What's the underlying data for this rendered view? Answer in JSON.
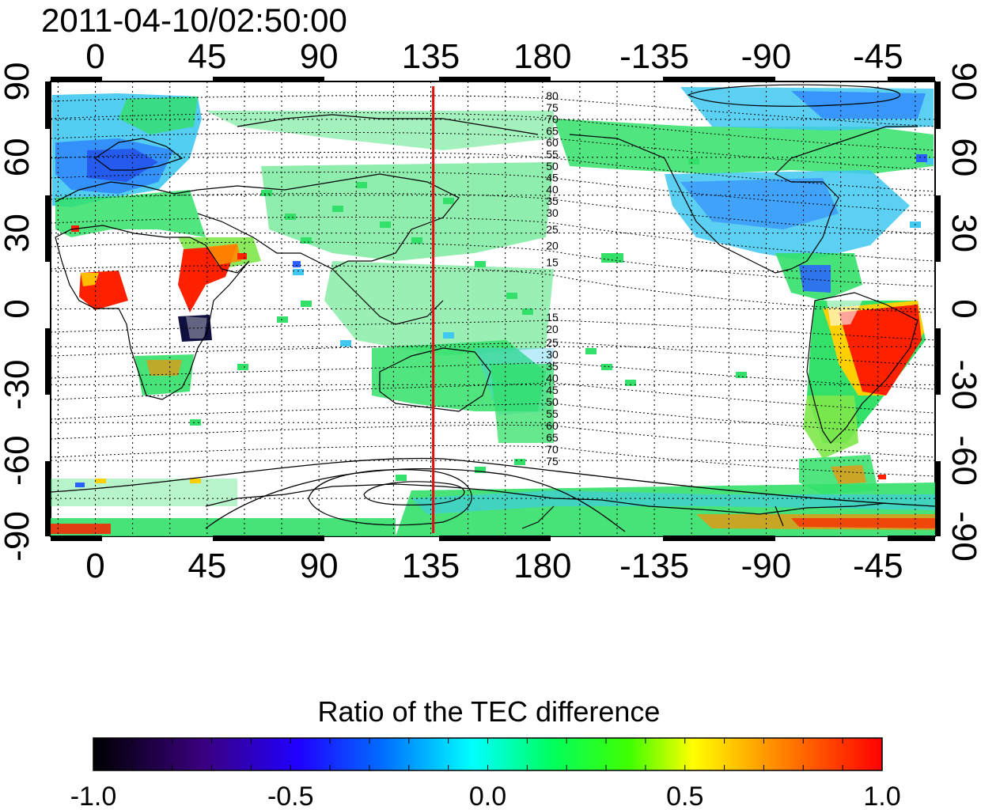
{
  "timestamp": "2011-04-10/02:50:00",
  "top_axis_labels": [
    "0",
    "45",
    "90",
    "135",
    "180",
    "-135",
    "-90",
    "-45"
  ],
  "bottom_axis_labels": [
    "0",
    "45",
    "90",
    "135",
    "180",
    "-135",
    "-90",
    "-45"
  ],
  "left_axis_labels": [
    "90",
    "60",
    "30",
    "0",
    "-30",
    "-60",
    "-90"
  ],
  "right_axis_labels": [
    "90",
    "60",
    "30",
    "0",
    "-30",
    "-60",
    "-90"
  ],
  "longitudes": [
    0,
    45,
    90,
    135,
    180,
    -135,
    -90,
    -45
  ],
  "latitudes": [
    90,
    60,
    30,
    0,
    -30,
    -60,
    -90
  ],
  "marker_longitude": 136,
  "marker_color": "#e01010",
  "contour_labels_north": [
    "80",
    "75",
    "70",
    "65",
    "60",
    "55",
    "50",
    "45",
    "40",
    "35",
    "30",
    "25",
    "20",
    "15"
  ],
  "contour_labels_south": [
    "15",
    "20",
    "25",
    "30",
    "35",
    "40",
    "45",
    "50",
    "55",
    "60",
    "65",
    "70",
    "75"
  ],
  "colorbar": {
    "title": "Ratio of the TEC difference",
    "tick_labels": [
      "-1.0",
      "-0.5",
      "0.0",
      "0.5",
      "1.0"
    ],
    "min": -1.0,
    "max": 1.0,
    "stops": [
      "#000000",
      "#3a0080",
      "#0000ff",
      "#00ffff",
      "#00ff00",
      "#ffff00",
      "#ff8000",
      "#ff0000"
    ]
  },
  "colors": {
    "enhanced": "#ff2000",
    "positive": "#ffd000",
    "neutral": "#33e06a",
    "neutral_alt": "#7ee84a",
    "slight_negative": "#40c8f0",
    "negative": "#2a60ff",
    "strong_negative": "#101040"
  }
}
